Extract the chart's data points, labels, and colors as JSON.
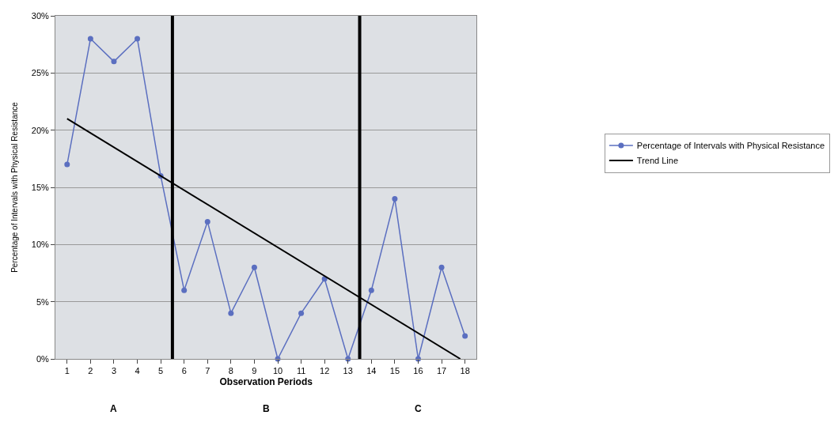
{
  "chart_data": {
    "type": "line",
    "xlabel": "Observation Periods",
    "ylabel": "Percentage of Intervals with Physical Resistance",
    "x": [
      1,
      2,
      3,
      4,
      5,
      6,
      7,
      8,
      9,
      10,
      11,
      12,
      13,
      14,
      15,
      16,
      17,
      18
    ],
    "xlim": [
      0.5,
      18.5
    ],
    "xticks": [
      1,
      2,
      3,
      4,
      5,
      6,
      7,
      8,
      9,
      10,
      11,
      12,
      13,
      14,
      15,
      16,
      17,
      18
    ],
    "ylim": [
      0,
      30
    ],
    "yticks": [
      {
        "value": 0,
        "label": "0%"
      },
      {
        "value": 5,
        "label": "5%"
      },
      {
        "value": 10,
        "label": "10%"
      },
      {
        "value": 15,
        "label": "15%"
      },
      {
        "value": 20,
        "label": "20%"
      },
      {
        "value": 25,
        "label": "25%"
      },
      {
        "value": 30,
        "label": "30%"
      }
    ],
    "series": [
      {
        "name": "Percentage of Intervals with Physical Resistance",
        "color": "#5b6fc0",
        "marker": "circle",
        "values": [
          17,
          28,
          26,
          28,
          16,
          6,
          12,
          4,
          8,
          0,
          4,
          7,
          0,
          6,
          14,
          0,
          8,
          2
        ]
      },
      {
        "name": "Trend Line",
        "color": "#000000",
        "marker": "none",
        "x": [
          1,
          17.8
        ],
        "values": [
          21,
          0
        ]
      }
    ],
    "ref_lines": [
      {
        "axis": "x",
        "value": 5.5,
        "color": "#000000"
      },
      {
        "axis": "x",
        "value": 13.5,
        "color": "#000000"
      }
    ],
    "annotations": [
      "A",
      "B",
      "C"
    ],
    "grid": "y",
    "legend": "right"
  }
}
